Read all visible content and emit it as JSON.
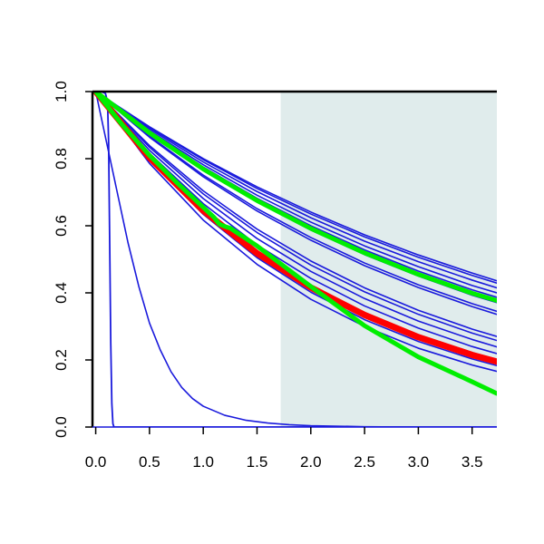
{
  "chart_data": {
    "type": "line",
    "title": "",
    "xlabel": "",
    "ylabel": "",
    "xlim": [
      -0.03,
      3.73
    ],
    "ylim": [
      0.0,
      1.0
    ],
    "x_ticks": [
      0.0,
      0.5,
      1.0,
      1.5,
      2.0,
      2.5,
      3.0,
      3.5
    ],
    "x_tick_labels": [
      "0.0",
      "0.5",
      "1.0",
      "1.5",
      "2.0",
      "2.5",
      "3.0",
      "3.5"
    ],
    "y_ticks": [
      0.0,
      0.2,
      0.4,
      0.6,
      0.8,
      1.0
    ],
    "y_tick_labels": [
      "0.0",
      "0.2",
      "0.4",
      "0.6",
      "0.8",
      "1.0"
    ],
    "grid": false,
    "legend": "none",
    "shaded_region": {
      "x_start": 1.72,
      "x_end": 3.73,
      "color": "#e0ecec"
    },
    "colors": {
      "blue": "#1a1adc",
      "red": "#ff0000",
      "green": "#00ee00",
      "axis": "#000000"
    },
    "series": [
      {
        "color": "#1a1adc",
        "width": 1.6,
        "x": [
          0,
          0.5,
          1.0,
          1.5,
          2.0,
          2.5,
          3.0,
          3.5,
          3.73
        ],
        "y": [
          1.0,
          0.895,
          0.8,
          0.716,
          0.641,
          0.573,
          0.513,
          0.459,
          0.436
        ]
      },
      {
        "color": "#1a1adc",
        "width": 1.6,
        "x": [
          0,
          0.5,
          1.0,
          1.5,
          2.0,
          2.5,
          3.0,
          3.5,
          3.73
        ],
        "y": [
          1.0,
          0.893,
          0.797,
          0.711,
          0.635,
          0.567,
          0.506,
          0.452,
          0.429
        ]
      },
      {
        "color": "#1a1adc",
        "width": 1.6,
        "x": [
          0,
          0.5,
          1.0,
          1.5,
          2.0,
          2.5,
          3.0,
          3.5,
          3.73
        ],
        "y": [
          1.0,
          0.889,
          0.79,
          0.702,
          0.624,
          0.554,
          0.493,
          0.438,
          0.415
        ]
      },
      {
        "color": "#1a1adc",
        "width": 1.6,
        "x": [
          0,
          0.5,
          1.0,
          1.5,
          2.0,
          2.5,
          3.0,
          3.5,
          3.73
        ],
        "y": [
          1.0,
          0.884,
          0.782,
          0.691,
          0.611,
          0.54,
          0.478,
          0.422,
          0.4
        ]
      },
      {
        "color": "#1a1adc",
        "width": 1.6,
        "x": [
          0,
          0.5,
          1.0,
          1.5,
          2.0,
          2.5,
          3.0,
          3.5,
          3.73
        ],
        "y": [
          1.0,
          0.88,
          0.775,
          0.682,
          0.6,
          0.528,
          0.465,
          0.409,
          0.387
        ]
      },
      {
        "color": "#1a1adc",
        "width": 1.6,
        "x": [
          0,
          0.5,
          1.0,
          1.5,
          2.0,
          2.5,
          3.0,
          3.5,
          3.73
        ],
        "y": [
          1.0,
          0.875,
          0.766,
          0.671,
          0.587,
          0.514,
          0.45,
          0.393,
          0.371
        ]
      },
      {
        "color": "#1a1adc",
        "width": 1.6,
        "x": [
          0,
          0.5,
          1.0,
          1.5,
          2.0,
          2.5,
          3.0,
          3.5,
          3.73
        ],
        "y": [
          1.0,
          0.867,
          0.751,
          0.651,
          0.565,
          0.489,
          0.424,
          0.368,
          0.345
        ]
      },
      {
        "color": "#1a1adc",
        "width": 1.6,
        "x": [
          0,
          0.5,
          1.0,
          1.5,
          2.0,
          2.5,
          3.0,
          3.5,
          3.73
        ],
        "y": [
          1.0,
          0.864,
          0.746,
          0.644,
          0.557,
          0.481,
          0.416,
          0.359,
          0.336
        ]
      },
      {
        "color": "#1a1adc",
        "width": 1.6,
        "x": [
          0,
          0.5,
          1.0,
          1.5,
          2.0,
          2.5,
          3.0,
          3.5,
          3.73
        ],
        "y": [
          1.0,
          0.839,
          0.704,
          0.59,
          0.495,
          0.415,
          0.348,
          0.292,
          0.27
        ]
      },
      {
        "color": "#1a1adc",
        "width": 1.6,
        "x": [
          0,
          0.5,
          1.0,
          1.5,
          2.0,
          2.5,
          3.0,
          3.5,
          3.73
        ],
        "y": [
          1.0,
          0.834,
          0.695,
          0.58,
          0.483,
          0.403,
          0.336,
          0.28,
          0.258
        ]
      },
      {
        "color": "#1a1adc",
        "width": 1.6,
        "x": [
          0,
          0.5,
          1.0,
          1.5,
          2.0,
          2.5,
          3.0,
          3.5,
          3.73
        ],
        "y": [
          1.0,
          0.825,
          0.681,
          0.562,
          0.464,
          0.383,
          0.316,
          0.261,
          0.239
        ]
      },
      {
        "color": "#1a1adc",
        "width": 1.6,
        "x": [
          0,
          0.5,
          1.0,
          1.5,
          2.0,
          2.5,
          3.0,
          3.5,
          3.73
        ],
        "y": [
          1.0,
          0.816,
          0.666,
          0.543,
          0.443,
          0.361,
          0.295,
          0.24,
          0.219
        ]
      },
      {
        "color": "#1a1adc",
        "width": 1.6,
        "x": [
          0,
          0.5,
          1.0,
          1.5,
          2.0,
          2.5,
          3.0,
          3.5,
          3.73
        ],
        "y": [
          1.0,
          0.806,
          0.65,
          0.524,
          0.423,
          0.341,
          0.275,
          0.222,
          0.201
        ]
      },
      {
        "color": "#1a1adc",
        "width": 1.6,
        "x": [
          0,
          0.5,
          1.0,
          1.5,
          2.0,
          2.5,
          3.0,
          3.5,
          3.73
        ],
        "y": [
          1.0,
          0.796,
          0.634,
          0.505,
          0.402,
          0.32,
          0.255,
          0.203,
          0.183
        ]
      },
      {
        "color": "#1a1adc",
        "width": 1.6,
        "x": [
          0,
          0.5,
          1.0,
          1.5,
          2.0,
          2.5,
          3.0,
          3.5,
          3.73
        ],
        "y": [
          1.0,
          0.786,
          0.617,
          0.485,
          0.381,
          0.3,
          0.235,
          0.185,
          0.166
        ]
      },
      {
        "color": "#1a1adc",
        "width": 1.6,
        "x": [
          0,
          0.1,
          0.2,
          0.3,
          0.4,
          0.5,
          0.6,
          0.7,
          0.8,
          0.9,
          1.0,
          1.2,
          1.4,
          1.6,
          1.8,
          2.0,
          2.5,
          3.0,
          3.5,
          3.73
        ],
        "y": [
          1.0,
          0.85,
          0.7,
          0.55,
          0.42,
          0.31,
          0.23,
          0.165,
          0.118,
          0.085,
          0.062,
          0.035,
          0.02,
          0.012,
          0.007,
          0.004,
          0.001,
          0.0,
          0.0,
          0.0
        ]
      },
      {
        "color": "#1a1adc",
        "width": 1.8,
        "x": [
          0,
          0.05,
          0.09,
          0.11,
          0.12,
          0.13,
          0.14,
          0.15,
          0.16,
          0.17,
          0.2,
          1.0,
          2.0,
          3.0,
          3.73
        ],
        "y": [
          1.0,
          1.0,
          0.995,
          0.97,
          0.85,
          0.55,
          0.25,
          0.07,
          0.01,
          0.0,
          0.0,
          0.0,
          0.0,
          0.0,
          0.0
        ]
      },
      {
        "color": "#ff0000",
        "width": 7,
        "x": [
          0,
          0.5,
          1.0,
          1.5,
          2.0,
          2.5,
          3.0,
          3.5,
          3.73
        ],
        "y": [
          1.0,
          0.803,
          0.645,
          0.518,
          0.416,
          0.334,
          0.268,
          0.215,
          0.195
        ]
      },
      {
        "color": "#00ee00",
        "width": 5,
        "x": [
          0,
          0.5,
          1.0,
          1.5,
          2.0,
          2.5,
          3.0,
          3.5,
          3.73
        ],
        "y": [
          1.0,
          0.877,
          0.769,
          0.675,
          0.592,
          0.519,
          0.455,
          0.399,
          0.377
        ]
      },
      {
        "color": "#00ee00",
        "width": 5,
        "x": [
          0,
          0.25,
          0.5,
          0.75,
          1.0,
          1.1,
          1.15,
          1.2,
          1.25,
          1.5,
          2.0,
          2.5,
          3.0,
          3.5,
          3.73
        ],
        "y": [
          1.0,
          0.9,
          0.81,
          0.73,
          0.655,
          0.625,
          0.605,
          0.598,
          0.593,
          0.54,
          0.419,
          0.302,
          0.209,
          0.135,
          0.1
        ]
      }
    ]
  }
}
